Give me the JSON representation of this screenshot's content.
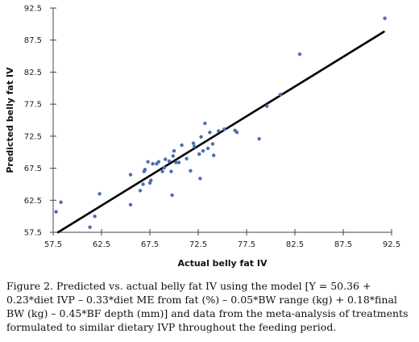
{
  "chart_data": {
    "type": "scatter",
    "xlabel": "Actual belly fat IV",
    "ylabel": "Predicted belly fat IV",
    "xlim": [
      57.5,
      92.5
    ],
    "ylim": [
      57.5,
      92.5
    ],
    "x_ticks": [
      "57.5",
      "62.5",
      "67.5",
      "72.5",
      "77.5",
      "82.5",
      "87.5",
      "92.5"
    ],
    "y_ticks": [
      "57.5",
      "62.5",
      "67.5",
      "72.5",
      "77.5",
      "82.5",
      "87.5",
      "92.5"
    ],
    "grid": false,
    "colors": {
      "points": "#4a6fb0",
      "line": "#000000",
      "axis": "#444444"
    },
    "fit_line": {
      "x": [
        58.0,
        91.7
      ],
      "y": [
        57.5,
        88.8
      ]
    },
    "points": [
      {
        "x": 57.8,
        "y": 60.7
      },
      {
        "x": 58.3,
        "y": 62.2
      },
      {
        "x": 61.3,
        "y": 58.3
      },
      {
        "x": 61.8,
        "y": 60.0
      },
      {
        "x": 62.3,
        "y": 63.5
      },
      {
        "x": 65.5,
        "y": 61.8
      },
      {
        "x": 65.5,
        "y": 66.5
      },
      {
        "x": 66.5,
        "y": 64.0
      },
      {
        "x": 66.8,
        "y": 65.0
      },
      {
        "x": 66.9,
        "y": 67.0
      },
      {
        "x": 67.0,
        "y": 67.3
      },
      {
        "x": 67.3,
        "y": 68.5
      },
      {
        "x": 67.5,
        "y": 65.2
      },
      {
        "x": 67.6,
        "y": 65.6
      },
      {
        "x": 67.8,
        "y": 68.2
      },
      {
        "x": 68.2,
        "y": 68.2
      },
      {
        "x": 68.4,
        "y": 68.5
      },
      {
        "x": 68.8,
        "y": 67.0
      },
      {
        "x": 69.0,
        "y": 67.6
      },
      {
        "x": 69.1,
        "y": 68.9
      },
      {
        "x": 69.5,
        "y": 68.6
      },
      {
        "x": 69.7,
        "y": 67.0
      },
      {
        "x": 69.8,
        "y": 63.3
      },
      {
        "x": 69.9,
        "y": 69.4
      },
      {
        "x": 70.0,
        "y": 70.2
      },
      {
        "x": 70.2,
        "y": 68.4
      },
      {
        "x": 70.5,
        "y": 68.4
      },
      {
        "x": 70.8,
        "y": 71.1
      },
      {
        "x": 71.3,
        "y": 69.0
      },
      {
        "x": 71.7,
        "y": 67.1
      },
      {
        "x": 72.0,
        "y": 71.4
      },
      {
        "x": 72.1,
        "y": 70.9
      },
      {
        "x": 72.6,
        "y": 69.7
      },
      {
        "x": 72.7,
        "y": 65.9
      },
      {
        "x": 72.8,
        "y": 72.4
      },
      {
        "x": 73.0,
        "y": 70.2
      },
      {
        "x": 73.2,
        "y": 74.5
      },
      {
        "x": 73.5,
        "y": 70.6
      },
      {
        "x": 73.7,
        "y": 73.1
      },
      {
        "x": 74.0,
        "y": 71.3
      },
      {
        "x": 74.1,
        "y": 69.5
      },
      {
        "x": 74.6,
        "y": 73.3
      },
      {
        "x": 75.2,
        "y": 73.6
      },
      {
        "x": 76.3,
        "y": 73.4
      },
      {
        "x": 76.5,
        "y": 73.1
      },
      {
        "x": 78.8,
        "y": 72.1
      },
      {
        "x": 79.6,
        "y": 77.2
      },
      {
        "x": 81.0,
        "y": 79.0
      },
      {
        "x": 83.0,
        "y": 85.3
      },
      {
        "x": 91.8,
        "y": 90.9
      }
    ]
  },
  "caption": "Figure 2. Predicted vs. actual belly fat IV using the model [Y = 50.36 + 0.23*diet IVP – 0.33*diet ME from fat (%) – 0.05*BW range (kg) + 0.18*final BW (kg) – 0.45*BF depth (mm)] and data from the meta-analysis of treatments formulated to similar dietary IVP throughout the feeding period."
}
